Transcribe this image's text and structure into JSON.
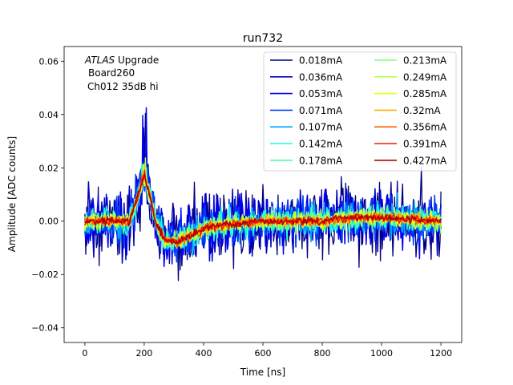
{
  "chart_data": {
    "type": "line",
    "title": "run732",
    "xlabel": "Time [ns]",
    "ylabel": "Amplitude [ADC counts]",
    "xlim": [
      -70,
      1270
    ],
    "ylim": [
      -0.0455,
      0.0655
    ],
    "xticks": [
      0,
      200,
      400,
      600,
      800,
      1000,
      1200
    ],
    "xtick_labels": [
      "0",
      "200",
      "400",
      "600",
      "800",
      "1000",
      "1200"
    ],
    "yticks": [
      -0.04,
      -0.02,
      0.0,
      0.02,
      0.04,
      0.06
    ],
    "ytick_labels": [
      "−0.04",
      "−0.02",
      "0.00",
      "0.02",
      "0.04",
      "0.06"
    ],
    "grid": false,
    "legend_position": "top-right",
    "legend_columns": 2,
    "annotation": {
      "italic": "ATLAS",
      "rest": " Upgrade",
      "line2": "Board260",
      "line3": "Ch012 35dB hi"
    },
    "x_range_ns": [
      0,
      1200
    ],
    "sample_step_ns": 3,
    "mean_pulse": {
      "description": "average waveform shared by all series",
      "points": [
        [
          0,
          0.0
        ],
        [
          150,
          0.0
        ],
        [
          175,
          0.008
        ],
        [
          200,
          0.017
        ],
        [
          222,
          0.008
        ],
        [
          240,
          -0.001
        ],
        [
          270,
          -0.007
        ],
        [
          310,
          -0.008
        ],
        [
          360,
          -0.005
        ],
        [
          420,
          -0.002
        ],
        [
          500,
          -0.001
        ],
        [
          600,
          0.0
        ],
        [
          800,
          0.0
        ],
        [
          860,
          0.001
        ],
        [
          950,
          0.0015
        ],
        [
          1050,
          0.001
        ],
        [
          1200,
          0.0
        ]
      ]
    },
    "series": [
      {
        "name": "0.018mA",
        "color": "#00007f",
        "noise": 0.0105
      },
      {
        "name": "0.036mA",
        "color": "#0000bb",
        "noise": 0.0085
      },
      {
        "name": "0.053mA",
        "color": "#0000f6",
        "noise": 0.007
      },
      {
        "name": "0.071mA",
        "color": "#0040ff",
        "noise": 0.0058
      },
      {
        "name": "0.107mA",
        "color": "#00a8ff",
        "noise": 0.0045
      },
      {
        "name": "0.142mA",
        "color": "#19ffe0",
        "noise": 0.0036
      },
      {
        "name": "0.178mA",
        "color": "#4dffaa",
        "noise": 0.003
      },
      {
        "name": "0.213mA",
        "color": "#80ff77",
        "noise": 0.0025
      },
      {
        "name": "0.249mA",
        "color": "#b4ff43",
        "noise": 0.0021
      },
      {
        "name": "0.285mA",
        "color": "#e7ff10",
        "noise": 0.0018
      },
      {
        "name": "0.32mA",
        "color": "#ffb300",
        "noise": 0.0015
      },
      {
        "name": "0.356mA",
        "color": "#ff6400",
        "noise": 0.0013
      },
      {
        "name": "0.391mA",
        "color": "#f11d00",
        "noise": 0.0011
      },
      {
        "name": "0.427mA",
        "color": "#b20000",
        "noise": 0.0009
      }
    ]
  }
}
